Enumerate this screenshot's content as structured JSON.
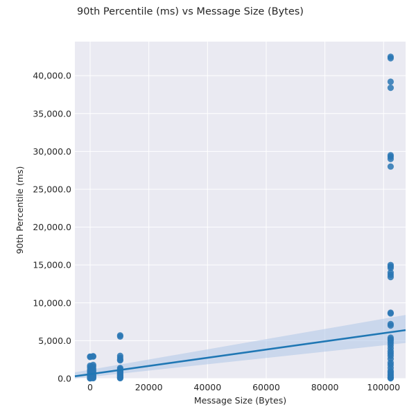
{
  "chart_data": {
    "type": "scatter",
    "title": "90th Percentile (ms) vs Message Size (Bytes)",
    "xlabel": "Message Size (Bytes)",
    "ylabel": "90th Percentile (ms)",
    "xlim": [
      -5200,
      107500
    ],
    "ylim": [
      0,
      44500
    ],
    "x_ticks": [
      0,
      20000,
      40000,
      60000,
      80000,
      100000
    ],
    "x_tick_labels": [
      "0",
      "20000",
      "40000",
      "60000",
      "80000",
      "100000"
    ],
    "y_ticks": [
      0,
      5000,
      10000,
      15000,
      20000,
      25000,
      30000,
      35000,
      40000
    ],
    "y_tick_labels": [
      "0.0",
      "5,000.0",
      "10,000.0",
      "15,000.0",
      "20,000.0",
      "25,000.0",
      "30,000.0",
      "35,000.0",
      "40,000.0"
    ],
    "grid": true,
    "colors": {
      "point": "#2a77b4",
      "line": "#1f77b4",
      "band": "#aec7e8",
      "background": "#eaeaf2",
      "grid": "#ffffff"
    },
    "points": {
      "x": [
        0,
        0,
        0,
        0,
        0,
        0,
        0,
        0,
        0,
        0,
        0,
        0,
        0,
        0,
        0,
        0,
        1024,
        1024,
        1024,
        1024,
        1024,
        1024,
        1024,
        1024,
        1024,
        1024,
        1024,
        1024,
        1024,
        1024,
        10240,
        10240,
        10240,
        10240,
        10240,
        10240,
        10240,
        10240,
        10240,
        10240,
        10240,
        10240,
        10240,
        10240,
        10240,
        10240,
        10240,
        10240,
        10240,
        10240,
        10240,
        102400,
        102400,
        102400,
        102400,
        102400,
        102400,
        102400,
        102400,
        102400,
        102400,
        102400,
        102400,
        102400,
        102400,
        102400,
        102400,
        102400,
        102400,
        102400,
        102400,
        102400,
        102400,
        102400,
        102400,
        102400,
        102400,
        102400,
        102400,
        102400,
        102400,
        102400,
        102400,
        102400,
        102400,
        102400,
        102400,
        102400,
        102400
      ],
      "y": [
        2900,
        2850,
        1700,
        1500,
        1200,
        1000,
        800,
        600,
        500,
        400,
        300,
        200,
        150,
        100,
        50,
        20,
        2950,
        2900,
        1800,
        1600,
        1300,
        1100,
        900,
        700,
        500,
        400,
        300,
        200,
        100,
        50,
        5700,
        5550,
        3000,
        2750,
        2500,
        2400,
        1400,
        1250,
        1100,
        1000,
        900,
        800,
        700,
        600,
        500,
        400,
        300,
        200,
        150,
        100,
        50,
        42500,
        42300,
        39200,
        38400,
        29500,
        29300,
        29000,
        28000,
        15000,
        14800,
        14600,
        14000,
        13700,
        13400,
        8700,
        8600,
        7200,
        7000,
        5400,
        5200,
        5000,
        4700,
        4400,
        4000,
        3600,
        3300,
        3000,
        2600,
        2100,
        1800,
        1400,
        1000,
        800,
        600,
        400,
        200,
        100,
        30
      ]
    },
    "regression": {
      "x": [
        -5200,
        107500
      ],
      "y": [
        300,
        6400
      ],
      "ci_upper": [
        820,
        8400
      ],
      "ci_lower": [
        0,
        4700
      ]
    }
  }
}
